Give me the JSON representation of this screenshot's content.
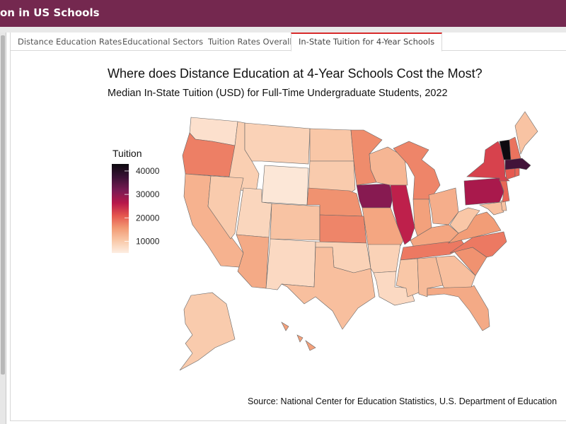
{
  "app": {
    "title": "on in US Schools"
  },
  "tabs": [
    {
      "label": "Distance Education Rates",
      "active": false
    },
    {
      "label": "Educational Sectors",
      "active": false
    },
    {
      "label": "Tuition Rates Overall",
      "active": false
    },
    {
      "label": "In-State Tuition for 4-Year Schools",
      "active": true
    }
  ],
  "colors": {
    "header": "#74284f",
    "active_tab_accent": "#d82b2b"
  },
  "chart_data": {
    "type": "choropleth",
    "title": "Where does Distance Education at 4-Year Schools Cost the Most?",
    "subtitle": "Median In-State Tuition (USD) for Full-Time Undergraduate Students, 2022",
    "legend": {
      "title": "Tuition",
      "ticks": [
        "40000",
        "30000",
        "20000",
        "10000"
      ],
      "tick_values": [
        40000,
        30000,
        20000,
        10000
      ],
      "range": [
        5000,
        43000
      ],
      "placement": "left",
      "palette": [
        "#fdeee2",
        "#f9c8a8",
        "#f29a74",
        "#e5564e",
        "#b8184a",
        "#7a1b53",
        "#3b1236",
        "#0d0a10"
      ]
    },
    "caption": "Source: National Center for Education Statistics, U.S. Department of Education",
    "states": [
      {
        "state": "WA",
        "tuition": 7000
      },
      {
        "state": "OR",
        "tuition": 18000
      },
      {
        "state": "CA",
        "tuition": 13000
      },
      {
        "state": "ID",
        "tuition": 9500
      },
      {
        "state": "NV",
        "tuition": 10000
      },
      {
        "state": "MT",
        "tuition": 9000
      },
      {
        "state": "WY",
        "tuition": 6000
      },
      {
        "state": "UT",
        "tuition": 8500
      },
      {
        "state": "AZ",
        "tuition": 14000
      },
      {
        "state": "CO",
        "tuition": 11000
      },
      {
        "state": "NM",
        "tuition": 8000
      },
      {
        "state": "ND",
        "tuition": 10500
      },
      {
        "state": "SD",
        "tuition": 10000
      },
      {
        "state": "NE",
        "tuition": 16500
      },
      {
        "state": "KS",
        "tuition": 17500
      },
      {
        "state": "OK",
        "tuition": 9000
      },
      {
        "state": "TX",
        "tuition": 11500
      },
      {
        "state": "MN",
        "tuition": 17000
      },
      {
        "state": "IA",
        "tuition": 31000
      },
      {
        "state": "MO",
        "tuition": 14500
      },
      {
        "state": "AR",
        "tuition": 9000
      },
      {
        "state": "LA",
        "tuition": 8000
      },
      {
        "state": "WI",
        "tuition": 12500
      },
      {
        "state": "IL",
        "tuition": 26000
      },
      {
        "state": "MI",
        "tuition": 17500
      },
      {
        "state": "IN",
        "tuition": 15000
      },
      {
        "state": "OH",
        "tuition": 13500
      },
      {
        "state": "KY",
        "tuition": 14500
      },
      {
        "state": "TN",
        "tuition": 18500
      },
      {
        "state": "MS",
        "tuition": 10500
      },
      {
        "state": "AL",
        "tuition": 12000
      },
      {
        "state": "GA",
        "tuition": 11500
      },
      {
        "state": "FL",
        "tuition": 14000
      },
      {
        "state": "SC",
        "tuition": 16500
      },
      {
        "state": "NC",
        "tuition": 18500
      },
      {
        "state": "VA",
        "tuition": 15500
      },
      {
        "state": "WV",
        "tuition": 10500
      },
      {
        "state": "MD",
        "tuition": 11500
      },
      {
        "state": "DE",
        "tuition": 11000
      },
      {
        "state": "PA",
        "tuition": 28000
      },
      {
        "state": "NJ",
        "tuition": 20000
      },
      {
        "state": "NY",
        "tuition": 23000
      },
      {
        "state": "CT",
        "tuition": 21000
      },
      {
        "state": "RI",
        "tuition": 20000
      },
      {
        "state": "MA",
        "tuition": 37000
      },
      {
        "state": "VT",
        "tuition": 43000
      },
      {
        "state": "NH",
        "tuition": 19000
      },
      {
        "state": "ME",
        "tuition": 11000
      },
      {
        "state": "AK",
        "tuition": 10000
      },
      {
        "state": "HI",
        "tuition": 15000
      }
    ]
  }
}
